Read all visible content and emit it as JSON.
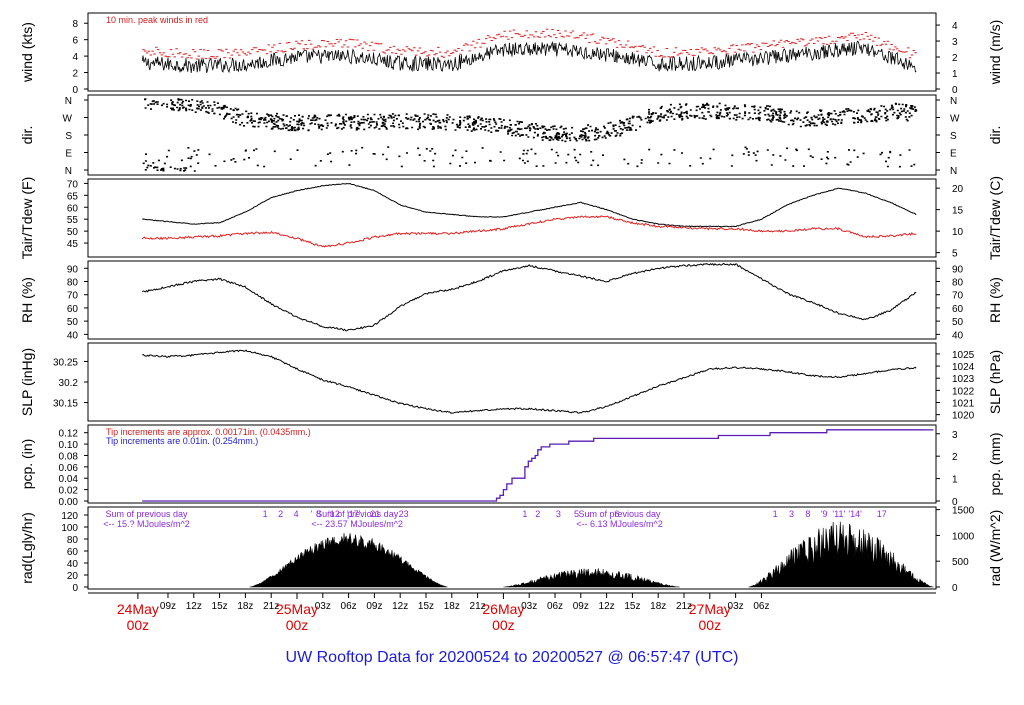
{
  "title": "UW Rooftop Data for 20200524  to  20200527 @ 06:57:47  (UTC)",
  "colors": {
    "primary": "#000000",
    "peak": "#e02020",
    "dew": "#e02020",
    "precip": "#5a1fb5",
    "note_red": "#d42020",
    "note_blue": "#2020d0",
    "note_purple": "#8a2be2",
    "date": "#e00000",
    "title": "#1c1cd6"
  },
  "chart_data": [
    {
      "type": "line",
      "name": "wind",
      "ylabel_left": "wind (kts)",
      "ylabel_right": "wind (m/s)",
      "ylim": [
        0,
        9
      ],
      "ticks_left": [
        0,
        2,
        4,
        6,
        8
      ],
      "ticks_right": [
        0,
        1,
        2,
        3,
        4
      ],
      "annotation": "10 min. peak winds in red",
      "series": [
        {
          "key": "wind",
          "color": "#000000",
          "style": "noisy",
          "amp": 0.9,
          "x": [
            0,
            6,
            12,
            18,
            24,
            30,
            36,
            42,
            48,
            54,
            60,
            66,
            72,
            78,
            84,
            90
          ],
          "values": [
            3.2,
            2.8,
            3.0,
            3.9,
            4.0,
            3.1,
            3.0,
            4.8,
            4.8,
            4.2,
            3.0,
            3.2,
            3.7,
            4.4,
            5.1,
            2.6
          ]
        },
        {
          "key": "peak",
          "color": "#e02020",
          "style": "dash",
          "amp": 0.6,
          "x": [
            0,
            6,
            12,
            18,
            24,
            30,
            36,
            42,
            48,
            54,
            60,
            66,
            72,
            78,
            84,
            90
          ],
          "values": [
            4.6,
            4.2,
            4.4,
            5.3,
            5.5,
            4.6,
            4.4,
            6.6,
            6.8,
            5.9,
            4.4,
            4.6,
            5.1,
            5.8,
            6.4,
            4.0
          ]
        }
      ]
    },
    {
      "type": "scatter",
      "name": "direction",
      "ylabel_left": "dir.",
      "ylabel_right": "dir.",
      "ticks_left": [
        "N",
        "W",
        "S",
        "E",
        "N"
      ],
      "ticks_right": [
        "N",
        "W",
        "S",
        "E",
        "N"
      ],
      "series": [
        {
          "key": "dir",
          "color": "#000000",
          "x": [
            0,
            4,
            8,
            12,
            18,
            24,
            30,
            36,
            42,
            48,
            52,
            56,
            60,
            66,
            72,
            76,
            80,
            84,
            88,
            90
          ],
          "values": [
            350,
            340,
            320,
            260,
            240,
            245,
            250,
            245,
            220,
            185,
            190,
            220,
            290,
            300,
            290,
            260,
            270,
            280,
            300,
            280
          ]
        }
      ]
    },
    {
      "type": "line",
      "name": "temperature",
      "ylabel_left": "Tair/Tdew (F)",
      "ylabel_right": "Tair/Tdew (C)",
      "ylim": [
        40,
        71
      ],
      "ticks_left": [
        45,
        50,
        55,
        60,
        65,
        70
      ],
      "ticks_right": [
        5,
        10,
        15,
        20
      ],
      "series": [
        {
          "key": "tair",
          "color": "#000000",
          "style": "line",
          "amp": 0.15,
          "x": [
            0,
            3,
            6,
            9,
            12,
            15,
            18,
            21,
            24,
            27,
            30,
            33,
            36,
            39,
            42,
            45,
            48,
            51,
            54,
            57,
            60,
            63,
            66,
            69,
            72,
            75,
            78,
            81,
            84,
            87,
            90
          ],
          "values": [
            55,
            54,
            53,
            53.5,
            58,
            64,
            67,
            69,
            70,
            67,
            61,
            58,
            57,
            56,
            56,
            58,
            60,
            62,
            59,
            55,
            53,
            52,
            52,
            52,
            55,
            61,
            65,
            68,
            66,
            62,
            57
          ]
        },
        {
          "key": "tdew",
          "color": "#e02020",
          "style": "line",
          "amp": 0.45,
          "x": [
            0,
            3,
            6,
            9,
            12,
            15,
            18,
            21,
            24,
            27,
            30,
            33,
            36,
            39,
            42,
            45,
            48,
            51,
            54,
            57,
            60,
            63,
            66,
            69,
            72,
            75,
            78,
            81,
            84,
            87,
            90
          ],
          "values": [
            47,
            47,
            47.5,
            48,
            49,
            49.5,
            47,
            43.5,
            45,
            47.5,
            49,
            49,
            49,
            50,
            51,
            53,
            55,
            56,
            56,
            53.5,
            52,
            51.5,
            51,
            51,
            50,
            50,
            51,
            51,
            47.5,
            48,
            49
          ]
        }
      ]
    },
    {
      "type": "line",
      "name": "rh",
      "ylabel_left": "RH (%)",
      "ylabel_right": "RH (%)",
      "ylim": [
        38,
        94
      ],
      "ticks_left": [
        40,
        50,
        60,
        70,
        80,
        90
      ],
      "ticks_right": [
        40,
        50,
        60,
        70,
        80,
        90
      ],
      "series": [
        {
          "key": "rh",
          "color": "#000000",
          "style": "line",
          "amp": 0.7,
          "x": [
            0,
            3,
            6,
            9,
            12,
            15,
            18,
            21,
            24,
            27,
            30,
            33,
            36,
            39,
            42,
            45,
            48,
            51,
            54,
            57,
            60,
            63,
            66,
            69,
            72,
            75,
            78,
            81,
            84,
            87,
            90
          ],
          "values": [
            72,
            76,
            80,
            82,
            76,
            63,
            53,
            46,
            43,
            47,
            61,
            71,
            74,
            80,
            88,
            92,
            88,
            84,
            80,
            86,
            90,
            92,
            93,
            93,
            82,
            71,
            64,
            56,
            51,
            58,
            72
          ]
        }
      ]
    },
    {
      "type": "line",
      "name": "pressure",
      "ylabel_left": "SLP (inHg)",
      "ylabel_right": "SLP (hPa)",
      "ylim": [
        30.11,
        30.29
      ],
      "ticks_left": [
        30.15,
        30.2,
        30.25
      ],
      "ticks_right": [
        1020,
        1021,
        1022,
        1023,
        1024,
        1025
      ],
      "series": [
        {
          "key": "slp",
          "color": "#000000",
          "style": "line",
          "amp": 0.002,
          "x": [
            0,
            3,
            6,
            9,
            12,
            15,
            18,
            21,
            24,
            27,
            30,
            33,
            36,
            39,
            42,
            45,
            48,
            51,
            54,
            57,
            60,
            63,
            66,
            69,
            72,
            75,
            78,
            81,
            84,
            87,
            90
          ],
          "values": [
            30.265,
            30.262,
            30.265,
            30.272,
            30.277,
            30.262,
            30.232,
            30.205,
            30.188,
            30.168,
            30.148,
            30.135,
            30.125,
            30.13,
            30.135,
            30.135,
            30.13,
            30.125,
            30.14,
            30.165,
            30.19,
            30.21,
            30.232,
            30.235,
            30.232,
            30.225,
            30.215,
            30.212,
            30.22,
            30.23,
            30.235
          ]
        }
      ]
    },
    {
      "type": "line",
      "name": "precipitation",
      "ylabel_left": "pcp. (in)",
      "ylabel_right": "pcp. (mm)",
      "ylim": [
        0,
        0.13
      ],
      "ticks_left": [
        0.0,
        0.02,
        0.04,
        0.06,
        0.08,
        0.1,
        0.12
      ],
      "ticks_left_labels": [
        "0.00",
        "0.02",
        "0.04",
        "0.06",
        "0.08",
        "0.10",
        "0.12"
      ],
      "ticks_right": [
        0,
        1,
        2,
        3
      ],
      "note_red": "Tip increments are approx. 0.00171in. (0.0435mm.)",
      "note_blue": "Tip increments are 0.01in. (0.254mm.)",
      "series": [
        {
          "key": "pcp",
          "color": "#5a1fb5",
          "style": "step",
          "x": [
            0,
            41.2,
            41.6,
            42.0,
            42.4,
            43.0,
            43.8,
            44.5,
            44.9,
            45.3,
            45.7,
            46.0,
            46.4,
            47.4,
            49.6,
            52.5,
            55.0,
            58.5,
            61.5,
            64.0,
            67.0,
            70.3,
            73.0,
            76.0,
            79.6,
            82.0,
            85.0,
            89.0,
            90.0
          ],
          "values": [
            0,
            0.005,
            0.01,
            0.02,
            0.03,
            0.04,
            0.04,
            0.06,
            0.07,
            0.075,
            0.08,
            0.09,
            0.095,
            0.1,
            0.105,
            0.11,
            0.11,
            0.11,
            0.11,
            0.11,
            0.115,
            0.115,
            0.12,
            0.12,
            0.125,
            0.125,
            0.125,
            0.125,
            0.125
          ]
        }
      ]
    },
    {
      "type": "area",
      "name": "radiation",
      "ylabel_left": "rad(Lgly/hr)",
      "ylabel_right": "rad (W/m^2)",
      "ylim": [
        0,
        130
      ],
      "ticks_left": [
        0,
        20,
        40,
        60,
        80,
        100,
        120
      ],
      "ticks_right": [
        0,
        500,
        1000,
        1500
      ],
      "days": [
        {
          "start": 12.5,
          "end": 35.5,
          "amp": 90,
          "noise": 0.25
        },
        {
          "start": 42.0,
          "end": 62.5,
          "amp": 32,
          "noise": 0.55
        },
        {
          "start": 70.5,
          "end": 92.0,
          "amp": 110,
          "noise": 0.6
        }
      ],
      "hour_marks": [
        {
          "x": 14.3,
          "label": "1"
        },
        {
          "x": 16.1,
          "label": "2"
        },
        {
          "x": 17.9,
          "label": "4"
        },
        {
          "x": 19.7,
          "label": "'"
        },
        {
          "x": 20.5,
          "label": "8"
        },
        {
          "x": 22.3,
          "label": "'12"
        },
        {
          "x": 24.6,
          "label": "'17'"
        },
        {
          "x": 27.1,
          "label": "21"
        },
        {
          "x": 30.4,
          "label": "23"
        },
        {
          "x": 44.5,
          "label": "1"
        },
        {
          "x": 46.0,
          "label": "2"
        },
        {
          "x": 48.4,
          "label": "3"
        },
        {
          "x": 50.5,
          "label": "5"
        },
        {
          "x": 55.2,
          "label": "6"
        },
        {
          "x": 73.6,
          "label": "1"
        },
        {
          "x": 75.5,
          "label": "3"
        },
        {
          "x": 77.4,
          "label": "8"
        },
        {
          "x": 79.3,
          "label": "'9"
        },
        {
          "x": 81.0,
          "label": "'11'"
        },
        {
          "x": 82.9,
          "label": "'14'"
        },
        {
          "x": 86.0,
          "label": "17"
        }
      ],
      "sums": [
        {
          "line1": "Sum of previous day",
          "line2": "<-- 15.? MJoules/m^2",
          "x": 0.5
        },
        {
          "line1": "Sum of previous day",
          "line2": "<-- 23.57 MJoules/m^2",
          "x": 25.0
        },
        {
          "line1": "Sum of previous day",
          "line2": "<-- 6.13 MJoules/m^2",
          "x": 55.5
        }
      ]
    }
  ],
  "time_axis": {
    "x_range": [
      -6.3,
      92.3
    ],
    "ticks": [
      {
        "x": 3,
        "label": "09z"
      },
      {
        "x": 6,
        "label": "12z"
      },
      {
        "x": 9,
        "label": "15z"
      },
      {
        "x": 12,
        "label": "18z"
      },
      {
        "x": 15,
        "label": "21z"
      },
      {
        "x": 21,
        "label": "03z"
      },
      {
        "x": 24,
        "label": "06z"
      },
      {
        "x": 27,
        "label": "09z"
      },
      {
        "x": 30,
        "label": "12z"
      },
      {
        "x": 33,
        "label": "15z"
      },
      {
        "x": 36,
        "label": "18z"
      },
      {
        "x": 39,
        "label": "21z"
      },
      {
        "x": 45,
        "label": "03z"
      },
      {
        "x": 48,
        "label": "06z"
      },
      {
        "x": 51,
        "label": "09z"
      },
      {
        "x": 54,
        "label": "12z"
      },
      {
        "x": 57,
        "label": "15z"
      },
      {
        "x": 60,
        "label": "18z"
      },
      {
        "x": 63,
        "label": "21z"
      },
      {
        "x": 69,
        "label": "03z"
      },
      {
        "x": 72,
        "label": "06z"
      }
    ],
    "dates": [
      {
        "x": -0.5,
        "day": "24May",
        "hour": "00z"
      },
      {
        "x": 18,
        "day": "25May",
        "hour": "00z"
      },
      {
        "x": 42,
        "day": "26May",
        "hour": "00z"
      },
      {
        "x": 66,
        "day": "27May",
        "hour": "00z"
      }
    ]
  }
}
